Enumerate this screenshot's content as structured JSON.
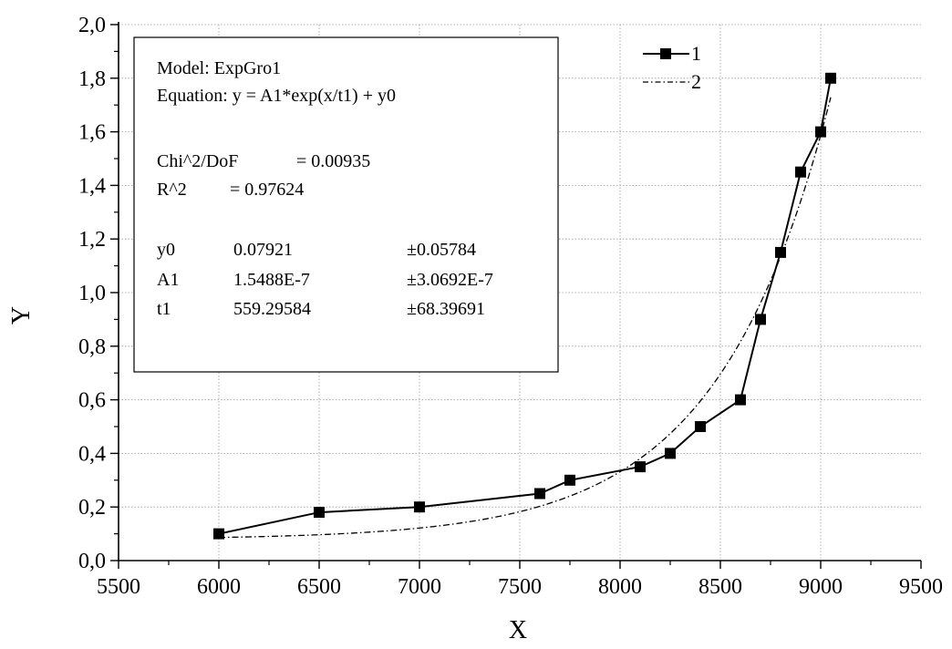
{
  "chart_data": {
    "type": "line",
    "xlabel": "X",
    "ylabel": "Y",
    "xlim": [
      5500,
      9500
    ],
    "ylim": [
      0,
      2.0
    ],
    "x_ticks": [
      5500,
      6000,
      6500,
      7000,
      7500,
      8000,
      8500,
      9000,
      9500
    ],
    "y_ticks": [
      0,
      0.2,
      0.4,
      0.6,
      0.8,
      1.0,
      1.2,
      1.4,
      1.6,
      1.8,
      2.0
    ],
    "x_tick_labels": [
      "5500",
      "6000",
      "6500",
      "7000",
      "7500",
      "8000",
      "8500",
      "9000",
      "9500"
    ],
    "y_tick_labels": [
      "0,0",
      "0,2",
      "0,4",
      "0,6",
      "0,8",
      "1,0",
      "1,2",
      "1,4",
      "1,6",
      "1,8",
      "2,0"
    ],
    "grid": true,
    "legend_position": "top-right",
    "series": [
      {
        "name": "1",
        "style": "solid-line-with-square-markers",
        "color": "#000000",
        "x": [
          6000,
          6500,
          7000,
          7600,
          7750,
          8100,
          8250,
          8400,
          8600,
          8700,
          8800,
          8900,
          9000,
          9050
        ],
        "y": [
          0.1,
          0.18,
          0.2,
          0.25,
          0.3,
          0.35,
          0.4,
          0.5,
          0.6,
          0.9,
          1.15,
          1.45,
          1.6,
          1.8
        ]
      },
      {
        "name": "2",
        "style": "dash-dot-line",
        "color": "#000000",
        "fit": {
          "y0": 0.07921,
          "A1": 1.5488e-07,
          "t1": 559.29584
        },
        "x_range": [
          6000,
          9050
        ]
      }
    ],
    "annotation": {
      "lines": [
        "Model: ExpGro1",
        "Equation: y = A1*exp(x/t1) + y0",
        "",
        "Chi^2/DoF = 0.00935",
        "R^2 = 0.97624",
        "",
        ""
      ],
      "chi_label": "Chi^2/DoF",
      "chi_value": "= 0.00935",
      "r2_label": "R^2",
      "r2_value": "=  0.97624",
      "params": [
        {
          "name": "y0",
          "value": "0.07921",
          "error": "±0.05784"
        },
        {
          "name": "A1",
          "value": "1.5488E-7",
          "error": "±3.0692E-7"
        },
        {
          "name": "t1",
          "value": "559.29584",
          "error": "±68.39691"
        }
      ]
    }
  }
}
